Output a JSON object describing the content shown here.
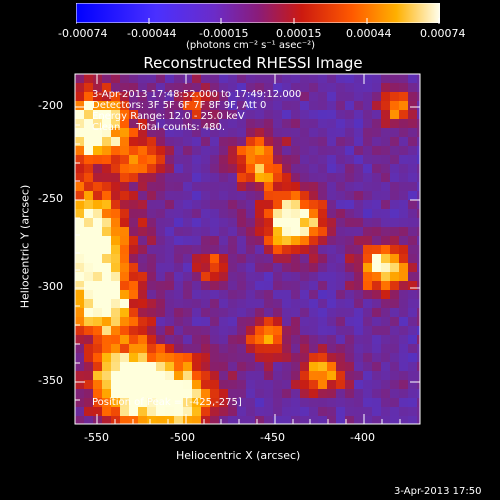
{
  "colorbar": {
    "ticks": [
      "-0.00074",
      "-0.00044",
      "-0.00015",
      "0.00015",
      "0.00044",
      "0.00074"
    ],
    "unit_label": "(photons cm⁻² s⁻¹ asec⁻²)"
  },
  "title": "Reconstructed RHESSI Image",
  "info": {
    "line1": "3-Apr-2013 17:48:52.000 to 17:49:12.000",
    "line2": "Detectors: 3F 5F 6F 7F 8F 9F, Att 0",
    "line3": "Energy Range: 12.0 - 25.0 keV",
    "line4": "Clean     Total counts: 480.",
    "peak": "Position of Peak = [-425,-275]"
  },
  "axes": {
    "xlabel": "Heliocentric X (arcsec)",
    "ylabel": "Heliocentric Y (arcsec)",
    "xticks": [
      "-550",
      "-500",
      "-450",
      "-400"
    ],
    "yticks": [
      "-200",
      "-250",
      "-300",
      "-350"
    ],
    "xrange": [
      -560,
      -365
    ],
    "yrange": [
      -375,
      -185
    ]
  },
  "footer_timestamp": "3-Apr-2013 17:50"
}
